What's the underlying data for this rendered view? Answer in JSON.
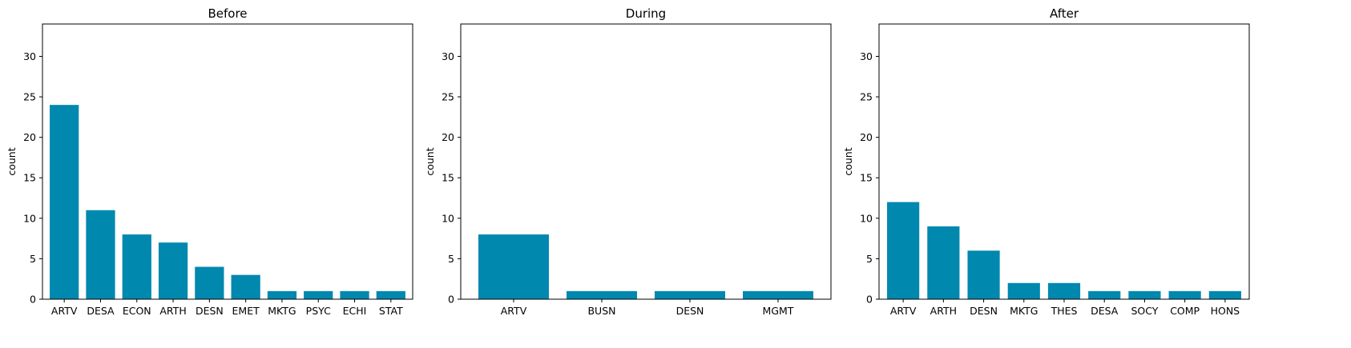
{
  "chart_data": [
    {
      "type": "bar",
      "title": "Before",
      "xlabel": "",
      "ylabel": "count",
      "ylim": [
        0,
        34
      ],
      "yticks": [
        0,
        5,
        10,
        15,
        20,
        25,
        30
      ],
      "grid": false,
      "bar_color": "#0088AF",
      "categories": [
        "ARTV",
        "DESA",
        "ECON",
        "ARTH",
        "DESN",
        "EMET",
        "MKTG",
        "PSYC",
        "ECHI",
        "STAT"
      ],
      "values": [
        24,
        11,
        8,
        7,
        4,
        3,
        1,
        1,
        1,
        1
      ]
    },
    {
      "type": "bar",
      "title": "During",
      "xlabel": "",
      "ylabel": "count",
      "ylim": [
        0,
        34
      ],
      "yticks": [
        0,
        5,
        10,
        15,
        20,
        25,
        30
      ],
      "grid": false,
      "bar_color": "#0088AF",
      "categories": [
        "ARTV",
        "BUSN",
        "DESN",
        "MGMT"
      ],
      "values": [
        8,
        1,
        1,
        1
      ]
    },
    {
      "type": "bar",
      "title": "After",
      "xlabel": "",
      "ylabel": "count",
      "ylim": [
        0,
        34
      ],
      "yticks": [
        0,
        5,
        10,
        15,
        20,
        25,
        30
      ],
      "grid": false,
      "bar_color": "#0088AF",
      "categories": [
        "ARTV",
        "ARTH",
        "DESN",
        "MKTG",
        "THES",
        "DESA",
        "SOCY",
        "COMP",
        "HONS"
      ],
      "values": [
        12,
        9,
        6,
        2,
        2,
        1,
        1,
        1,
        1
      ]
    }
  ]
}
